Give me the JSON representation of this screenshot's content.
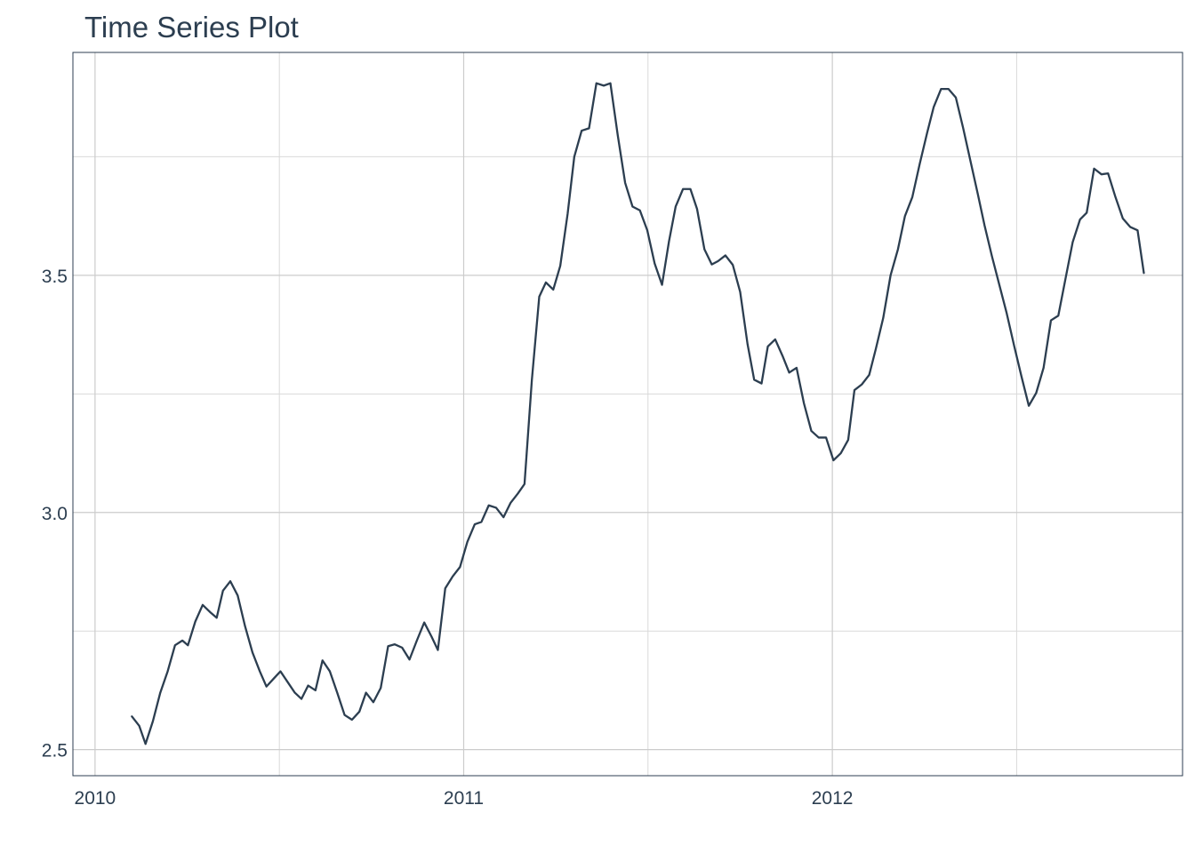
{
  "chart_data": {
    "type": "line",
    "title": "Time Series Plot",
    "xlabel": "",
    "ylabel": "",
    "x_ticks": [
      "2010",
      "2011",
      "2012"
    ],
    "y_ticks": [
      "2.5",
      "3.0",
      "3.5"
    ],
    "xlim": [
      2009.94,
      2012.95
    ],
    "ylim": [
      2.445,
      3.97
    ],
    "grid": true,
    "legend": "none",
    "colors": {
      "line": "#2c3e50",
      "grid_major": "#cccccc",
      "grid_minor": "#d9d9d9",
      "border": "#2c3e50",
      "text": "#2c3e50"
    },
    "series": [
      {
        "points": [
          [
            2010.1,
            2.57
          ],
          [
            2010.12,
            2.55
          ],
          [
            2010.137,
            2.512
          ],
          [
            2010.157,
            2.56
          ],
          [
            2010.177,
            2.62
          ],
          [
            2010.197,
            2.665
          ],
          [
            2010.217,
            2.72
          ],
          [
            2010.237,
            2.73
          ],
          [
            2010.252,
            2.72
          ],
          [
            2010.272,
            2.77
          ],
          [
            2010.292,
            2.805
          ],
          [
            2010.312,
            2.79
          ],
          [
            2010.33,
            2.778
          ],
          [
            2010.347,
            2.835
          ],
          [
            2010.367,
            2.855
          ],
          [
            2010.387,
            2.825
          ],
          [
            2010.407,
            2.76
          ],
          [
            2010.427,
            2.705
          ],
          [
            2010.447,
            2.665
          ],
          [
            2010.465,
            2.633
          ],
          [
            2010.485,
            2.65
          ],
          [
            2010.503,
            2.665
          ],
          [
            2010.522,
            2.643
          ],
          [
            2010.542,
            2.62
          ],
          [
            2010.56,
            2.607
          ],
          [
            2010.578,
            2.635
          ],
          [
            2010.598,
            2.625
          ],
          [
            2010.617,
            2.688
          ],
          [
            2010.637,
            2.665
          ],
          [
            2010.657,
            2.62
          ],
          [
            2010.677,
            2.573
          ],
          [
            2010.697,
            2.563
          ],
          [
            2010.717,
            2.58
          ],
          [
            2010.735,
            2.62
          ],
          [
            2010.755,
            2.6
          ],
          [
            2010.775,
            2.63
          ],
          [
            2010.795,
            2.718
          ],
          [
            2010.813,
            2.722
          ],
          [
            2010.833,
            2.715
          ],
          [
            2010.853,
            2.69
          ],
          [
            2010.873,
            2.73
          ],
          [
            2010.893,
            2.768
          ],
          [
            2010.913,
            2.738
          ],
          [
            2010.93,
            2.71
          ],
          [
            2010.95,
            2.84
          ],
          [
            2010.97,
            2.865
          ],
          [
            2010.99,
            2.885
          ],
          [
            2011.01,
            2.938
          ],
          [
            2011.03,
            2.975
          ],
          [
            2011.048,
            2.98
          ],
          [
            2011.068,
            3.015
          ],
          [
            2011.088,
            3.01
          ],
          [
            2011.108,
            2.99
          ],
          [
            2011.127,
            3.02
          ],
          [
            2011.147,
            3.04
          ],
          [
            2011.165,
            3.06
          ],
          [
            2011.185,
            3.28
          ],
          [
            2011.205,
            3.455
          ],
          [
            2011.223,
            3.485
          ],
          [
            2011.243,
            3.47
          ],
          [
            2011.262,
            3.52
          ],
          [
            2011.282,
            3.63
          ],
          [
            2011.3,
            3.75
          ],
          [
            2011.32,
            3.805
          ],
          [
            2011.34,
            3.81
          ],
          [
            2011.36,
            3.905
          ],
          [
            2011.38,
            3.9
          ],
          [
            2011.398,
            3.905
          ],
          [
            2011.418,
            3.795
          ],
          [
            2011.438,
            3.695
          ],
          [
            2011.458,
            3.645
          ],
          [
            2011.478,
            3.637
          ],
          [
            2011.498,
            3.595
          ],
          [
            2011.518,
            3.525
          ],
          [
            2011.538,
            3.48
          ],
          [
            2011.557,
            3.572
          ],
          [
            2011.575,
            3.645
          ],
          [
            2011.595,
            3.682
          ],
          [
            2011.615,
            3.682
          ],
          [
            2011.633,
            3.64
          ],
          [
            2011.653,
            3.555
          ],
          [
            2011.673,
            3.523
          ],
          [
            2011.69,
            3.53
          ],
          [
            2011.71,
            3.542
          ],
          [
            2011.73,
            3.522
          ],
          [
            2011.75,
            3.465
          ],
          [
            2011.77,
            3.355
          ],
          [
            2011.788,
            3.28
          ],
          [
            2011.808,
            3.272
          ],
          [
            2011.825,
            3.35
          ],
          [
            2011.845,
            3.365
          ],
          [
            2011.865,
            3.33
          ],
          [
            2011.883,
            3.295
          ],
          [
            2011.903,
            3.305
          ],
          [
            2011.923,
            3.23
          ],
          [
            2011.943,
            3.172
          ],
          [
            2011.963,
            3.158
          ],
          [
            2011.983,
            3.158
          ],
          [
            2012.003,
            3.11
          ],
          [
            2012.023,
            3.125
          ],
          [
            2012.043,
            3.153
          ],
          [
            2012.06,
            3.258
          ],
          [
            2012.08,
            3.27
          ],
          [
            2012.1,
            3.29
          ],
          [
            2012.118,
            3.345
          ],
          [
            2012.138,
            3.41
          ],
          [
            2012.158,
            3.5
          ],
          [
            2012.178,
            3.555
          ],
          [
            2012.197,
            3.625
          ],
          [
            2012.217,
            3.665
          ],
          [
            2012.237,
            3.735
          ],
          [
            2012.257,
            3.8
          ],
          [
            2012.275,
            3.855
          ],
          [
            2012.295,
            3.893
          ],
          [
            2012.315,
            3.893
          ],
          [
            2012.335,
            3.875
          ],
          [
            2012.355,
            3.81
          ],
          [
            2012.375,
            3.74
          ],
          [
            2012.395,
            3.67
          ],
          [
            2012.413,
            3.605
          ],
          [
            2012.433,
            3.54
          ],
          [
            2012.453,
            3.48
          ],
          [
            2012.473,
            3.42
          ],
          [
            2012.493,
            3.352
          ],
          [
            2012.513,
            3.287
          ],
          [
            2012.533,
            3.225
          ],
          [
            2012.553,
            3.252
          ],
          [
            2012.573,
            3.305
          ],
          [
            2012.593,
            3.405
          ],
          [
            2012.613,
            3.415
          ],
          [
            2012.633,
            3.495
          ],
          [
            2012.652,
            3.57
          ],
          [
            2012.672,
            3.618
          ],
          [
            2012.69,
            3.632
          ],
          [
            2012.71,
            3.725
          ],
          [
            2012.73,
            3.713
          ],
          [
            2012.748,
            3.715
          ],
          [
            2012.768,
            3.665
          ],
          [
            2012.788,
            3.62
          ],
          [
            2012.808,
            3.602
          ],
          [
            2012.828,
            3.595
          ],
          [
            2012.845,
            3.505
          ]
        ]
      }
    ]
  }
}
